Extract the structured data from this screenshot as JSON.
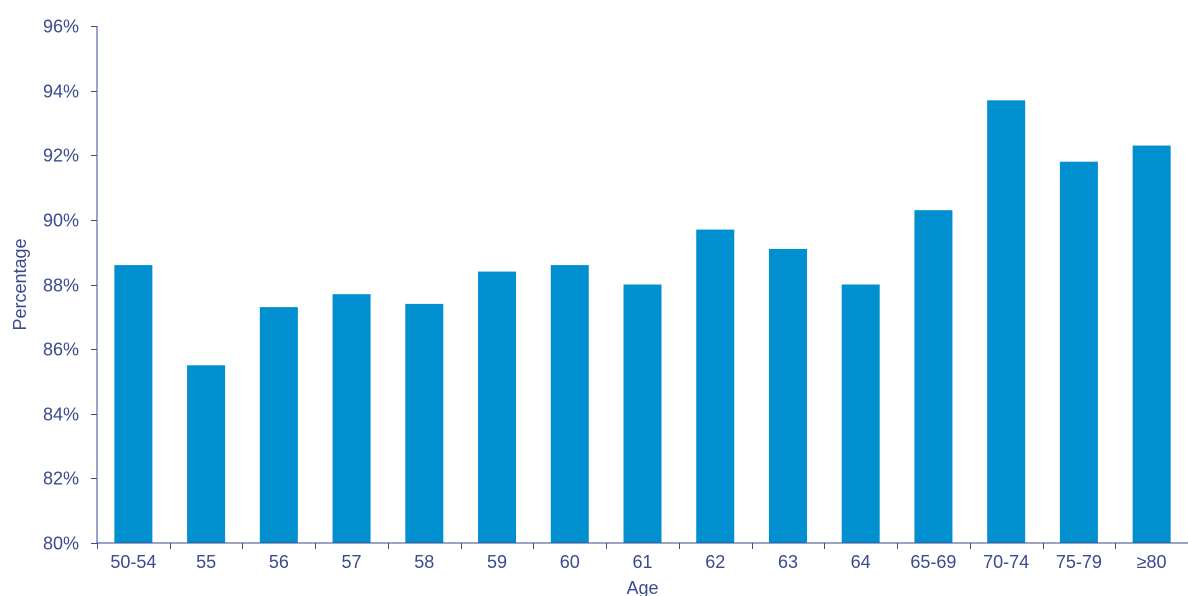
{
  "colors": {
    "bar": "#0090cf",
    "axis": "#3a4b8f",
    "text": "#3a4b8f"
  },
  "chart_data": {
    "type": "bar",
    "title": "",
    "xlabel": "Age",
    "ylabel": "Percentage",
    "categories": [
      "50-54",
      "55",
      "56",
      "57",
      "58",
      "59",
      "60",
      "61",
      "62",
      "63",
      "64",
      "65-69",
      "70-74",
      "75-79",
      "≥80"
    ],
    "series": [
      {
        "values": [
          88.6,
          85.5,
          87.3,
          87.7,
          87.4,
          88.4,
          88.6,
          88.0,
          89.7,
          89.1,
          88.0,
          90.3,
          93.7,
          91.8,
          92.3
        ]
      }
    ],
    "ylim": [
      80,
      96
    ],
    "yticks": [
      80,
      82,
      84,
      86,
      88,
      90,
      92,
      94,
      96
    ],
    "ytick_format": "percent",
    "grid": false,
    "legend": "none"
  }
}
